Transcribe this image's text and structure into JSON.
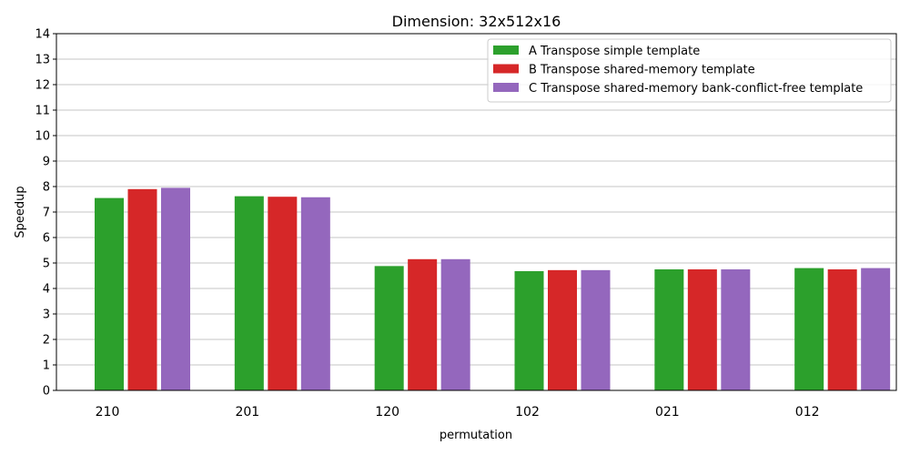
{
  "chart_data": {
    "type": "bar",
    "title": "Dimension: 32x512x16",
    "xlabel": "permutation",
    "ylabel": "Speedup",
    "ylim": [
      0,
      14
    ],
    "yticks": [
      0,
      1,
      2,
      3,
      4,
      5,
      6,
      7,
      8,
      9,
      10,
      11,
      12,
      13,
      14
    ],
    "grid": "horizontal",
    "legend_position": "top-right",
    "categories": [
      "210",
      "201",
      "120",
      "102",
      "021",
      "012"
    ],
    "series": [
      {
        "name": "A Transpose simple template",
        "color": "#2ca02c",
        "values": [
          7.55,
          7.62,
          4.88,
          4.68,
          4.75,
          4.8
        ]
      },
      {
        "name": "B Transpose shared-memory template",
        "color": "#d62728",
        "values": [
          7.9,
          7.6,
          5.15,
          4.72,
          4.75,
          4.75
        ]
      },
      {
        "name": "C Transpose shared-memory bank-conflict-free template",
        "color": "#9467bd",
        "values": [
          7.95,
          7.58,
          5.15,
          4.72,
          4.75,
          4.8
        ]
      }
    ]
  }
}
